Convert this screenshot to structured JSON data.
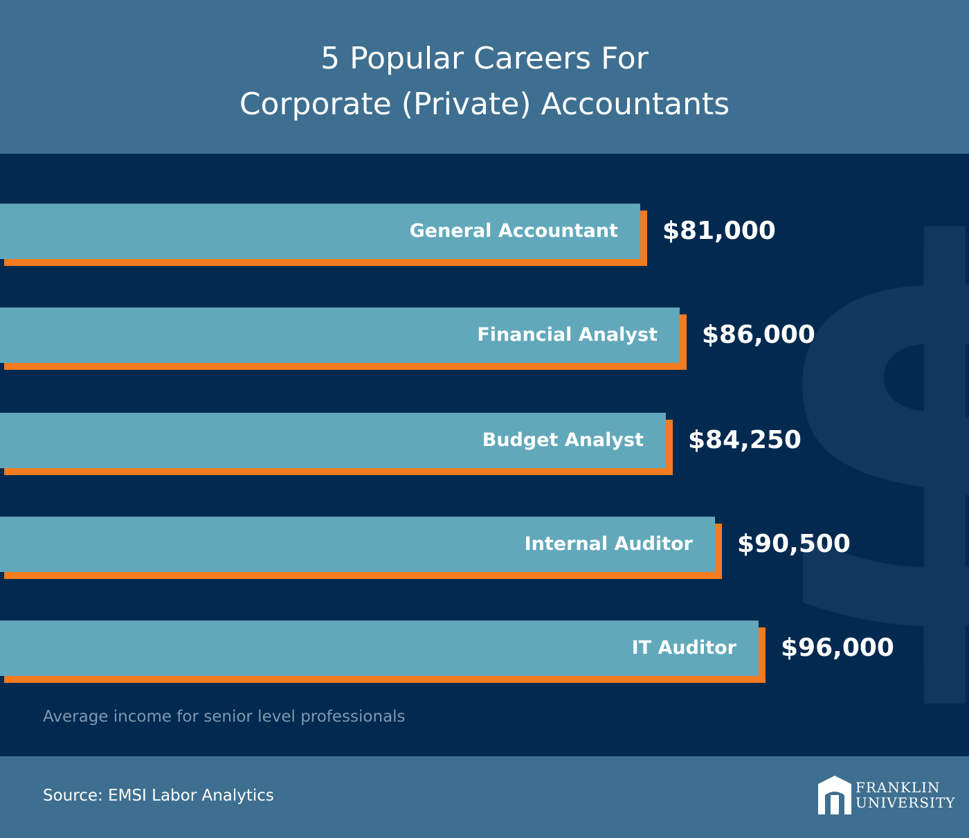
{
  "title": {
    "line1": "5 Popular Careers For",
    "line2": "Corporate (Private) Accountants"
  },
  "chart_data": {
    "type": "bar",
    "orientation": "horizontal",
    "title": "5 Popular Careers For Corporate (Private) Accountants",
    "categories": [
      "General Accountant",
      "Financial Analyst",
      "Budget Analyst",
      "Internal Auditor",
      "IT Auditor"
    ],
    "values": [
      81000,
      86000,
      84250,
      90500,
      96000
    ],
    "value_labels": [
      "$81,000",
      "$86,000",
      "$84,250",
      "$90,500",
      "$96,000"
    ],
    "xlabel": "",
    "ylabel": "",
    "grid": false,
    "note": "Average income for senior level professionals"
  },
  "footer": {
    "source": "Source: EMSI Labor Analytics",
    "logo_line1": "FRANKLIN",
    "logo_line2": "UNIVERSITY"
  },
  "colors": {
    "header_bg": "#3e6f90",
    "chart_bg": "#022a50",
    "bar": "#61a8ba",
    "bar_accent": "#f47b20",
    "watermark": "#113660"
  },
  "icons": {
    "watermark": "dollar-sign-icon",
    "logo": "franklin-arch-icon"
  }
}
